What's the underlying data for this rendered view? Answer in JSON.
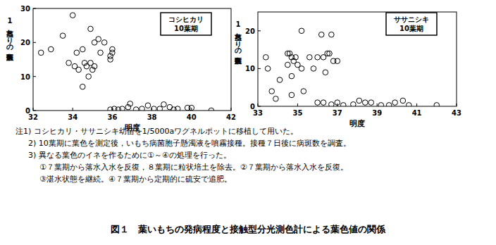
{
  "chart_data": [
    {
      "type": "scatter",
      "annotations": [
        "コシヒカリ",
        "10葉期"
      ],
      "x_label": "明度",
      "y_label": "1茎当たりの病斑数",
      "xlim": [
        32,
        42
      ],
      "xticks": [
        32,
        34,
        36,
        38,
        40,
        42
      ],
      "ylim": [
        0,
        30
      ],
      "yticks": [
        0,
        10,
        20,
        30
      ],
      "series": [
        {
          "color": "#000000",
          "marker": "open-circle",
          "x": [
            32.4,
            32.9,
            33.5,
            33.8,
            34.0,
            34.1,
            34.2,
            34.3,
            34.5,
            34.5,
            34.6,
            34.7,
            34.8,
            34.9,
            34.9,
            35.0,
            35.1,
            35.1,
            35.3,
            35.4,
            35.6,
            35.9,
            35.9,
            36.0,
            36.0,
            35.9,
            36.1,
            36.3,
            36.5,
            36.8,
            36.9,
            37.2,
            37.5,
            37.8,
            38.1,
            38.4,
            38.6,
            38.9,
            39.1,
            39.3,
            39.8,
            40.0,
            41.0
          ],
          "values": [
            17,
            18,
            22,
            14,
            28,
            13,
            17,
            12,
            18,
            7,
            14,
            13,
            10,
            14,
            24,
            12,
            13,
            20,
            21,
            17,
            20,
            16,
            15,
            17,
            18,
            0.3,
            0.5,
            0.3,
            0.5,
            1,
            2,
            0.3,
            0.5,
            1.5,
            0.5,
            0.5,
            1.8,
            1,
            0.3,
            0.5,
            0.8,
            0.8,
            0
          ]
        }
      ]
    },
    {
      "type": "scatter",
      "annotations": [
        "ササニシキ",
        "10葉期"
      ],
      "x_label": "明度",
      "y_label": "1茎当たりの病斑数",
      "xlim": [
        33,
        43
      ],
      "xticks": [
        33,
        35,
        37,
        39,
        41,
        43
      ],
      "ylim": [
        0,
        25
      ],
      "yticks": [
        0,
        10,
        20
      ],
      "series": [
        {
          "color": "#000000",
          "marker": "open-circle",
          "x": [
            33.4,
            33.5,
            33.7,
            33.9,
            34.1,
            34.5,
            34.5,
            34.6,
            34.7,
            34.8,
            34.7,
            34.7,
            34.9,
            35.0,
            35.2,
            35.2,
            35.3,
            35.6,
            35.8,
            36.0,
            36.0,
            36.2,
            36.3,
            36.4,
            36.5,
            36.6,
            36.7,
            36.8,
            37.0,
            37.0,
            36.3,
            36.7,
            37.3,
            37.8,
            38.1,
            38.4,
            38.7,
            39.2,
            39.6,
            39.9,
            40.3,
            40.6,
            42.0
          ],
          "values": [
            13,
            10,
            4,
            2,
            7,
            14,
            11,
            14,
            13,
            12,
            8,
            3,
            13,
            11,
            10,
            20,
            4,
            13,
            10,
            13,
            1,
            19,
            13,
            9,
            14,
            14,
            19,
            12,
            12,
            1,
            1,
            0.5,
            0.3,
            0.5,
            1.5,
            1,
            1,
            0.3,
            0.3,
            1,
            1.5,
            0.3,
            0.3
          ]
        }
      ]
    }
  ],
  "notes": [
    "注1) コシヒカリ・ササニシキ幼苗を1/5000aワグネルポットに移植して用いた。",
    "2) 10葉期に葉色を測定後，いもち病菌胞子懸濁液を噴霧接種。接種７日後に病斑数を調査。",
    "3) 異なる葉色のイネを作るために①～④の処理を行った。",
    "①７葉期から落水入水を反復，８葉期に粒状培土を除去。②７葉期から落水入水を反復。",
    "③湛水状態を継続。④７葉期から定期的に硫安で追肥。"
  ],
  "caption": "図１　葉いもちの発病程度と接触型分光測色計による葉色値の関係"
}
